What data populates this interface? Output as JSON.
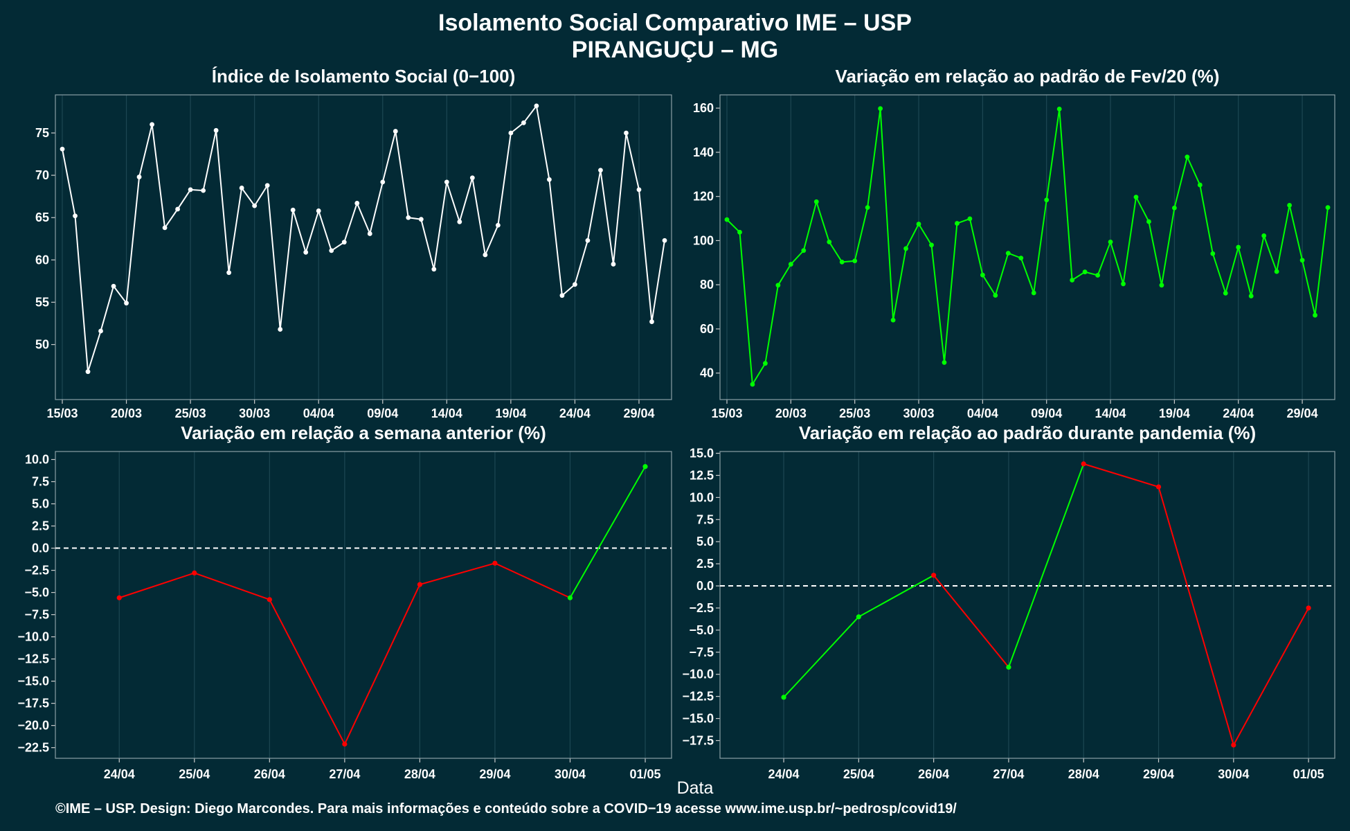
{
  "header": {
    "title_line1": "Isolamento Social Comparativo IME – USP",
    "title_line2": "PIRANGUÇU – MG"
  },
  "footer": {
    "xlabel": "Data",
    "caption": "©IME – USP. Design: Diego Marcondes. Para mais informações e conteúdo sobre a COVID−19 acesse www.ime.usp.br/~pedrosp/covid19/"
  },
  "colors": {
    "background": "#032a35",
    "white_series": "#ffffff",
    "green_series": "#00ff00",
    "red_series": "#ff0000",
    "grid": "#1d4753",
    "zero_line": "#ffffff"
  },
  "chart_data": [
    {
      "type": "line",
      "title": "Índice de Isolamento Social (0−100)",
      "x_start": "15/03",
      "x_ticks": [
        "15/03",
        "20/03",
        "25/03",
        "30/03",
        "04/04",
        "09/04",
        "14/04",
        "19/04",
        "24/04",
        "29/04"
      ],
      "ylim": [
        43.5,
        79.5
      ],
      "y_ticks": [
        50,
        55,
        60,
        65,
        70,
        75
      ],
      "color": "#ffffff",
      "values": [
        73.1,
        65.2,
        46.8,
        51.6,
        56.9,
        54.9,
        69.8,
        76.0,
        63.8,
        66.0,
        68.3,
        68.2,
        75.3,
        58.5,
        68.5,
        66.4,
        68.8,
        51.8,
        65.9,
        60.9,
        65.8,
        61.1,
        62.1,
        66.7,
        63.1,
        69.2,
        75.2,
        65.0,
        64.8,
        58.9,
        69.2,
        64.5,
        69.7,
        60.6,
        64.1,
        75.0,
        76.2,
        78.2,
        69.5,
        55.8,
        57.1,
        62.3,
        70.6,
        59.5,
        75.0,
        68.3,
        52.7,
        62.3
      ]
    },
    {
      "type": "line",
      "title": "Variação em relação ao padrão de Fev/20 (%)",
      "x_start": "15/03",
      "x_ticks": [
        "15/03",
        "20/03",
        "25/03",
        "30/03",
        "04/04",
        "09/04",
        "14/04",
        "19/04",
        "24/04",
        "29/04"
      ],
      "ylim": [
        28,
        166
      ],
      "y_ticks": [
        40,
        60,
        80,
        100,
        120,
        140,
        160
      ],
      "color": "#00ff00",
      "values": [
        109.5,
        103.8,
        34.9,
        44.4,
        79.8,
        89.3,
        95.5,
        117.6,
        99.4,
        90.3,
        90.8,
        115.0,
        159.8,
        64.0,
        96.4,
        107.5,
        98.0,
        44.8,
        107.8,
        109.9,
        84.4,
        75.2,
        94.3,
        92.1,
        76.3,
        118.4,
        159.6,
        82.1,
        85.8,
        84.3,
        99.4,
        80.4,
        119.7,
        108.6,
        79.8,
        114.8,
        137.9,
        125.2,
        94.1,
        76.2,
        97.0,
        74.9,
        102.2,
        86.0,
        116.0,
        91.1,
        66.2,
        115.0
      ]
    },
    {
      "type": "line",
      "title": "Variação em relação a semana anterior (%)",
      "categories": [
        "24/04",
        "25/04",
        "26/04",
        "27/04",
        "28/04",
        "29/04",
        "30/04",
        "01/05"
      ],
      "values": [
        -5.6,
        -2.8,
        -5.8,
        -22.1,
        -4.1,
        -1.7,
        -5.6,
        9.2
      ],
      "segment_colors": [
        "#ff0000",
        "#ff0000",
        "#ff0000",
        "#ff0000",
        "#ff0000",
        "#ff0000",
        "#00ff00"
      ],
      "ylim": [
        -23.7,
        10.9
      ],
      "y_ticks": [
        10.0,
        7.5,
        5.0,
        2.5,
        0.0,
        -2.5,
        -5.0,
        -7.5,
        -10.0,
        -12.5,
        -15.0,
        -17.5,
        -20.0,
        -22.5
      ],
      "reference_line": 0
    },
    {
      "type": "line",
      "title": "Variação em relação ao padrão durante pandemia (%)",
      "categories": [
        "24/04",
        "25/04",
        "26/04",
        "27/04",
        "28/04",
        "29/04",
        "30/04",
        "01/05"
      ],
      "values": [
        -12.6,
        -3.5,
        1.2,
        -9.2,
        13.8,
        11.2,
        -18.0,
        -2.5
      ],
      "segment_colors": [
        "#00ff00",
        "#00ff00",
        "#ff0000",
        "#00ff00",
        "#ff0000",
        "#ff0000",
        "#ff0000"
      ],
      "ylim": [
        -19.5,
        15.2
      ],
      "y_ticks": [
        15.0,
        12.5,
        10.0,
        7.5,
        5.0,
        2.5,
        0.0,
        -2.5,
        -5.0,
        -7.5,
        -10.0,
        -12.5,
        -15.0,
        -17.5
      ],
      "reference_line": 0
    }
  ]
}
